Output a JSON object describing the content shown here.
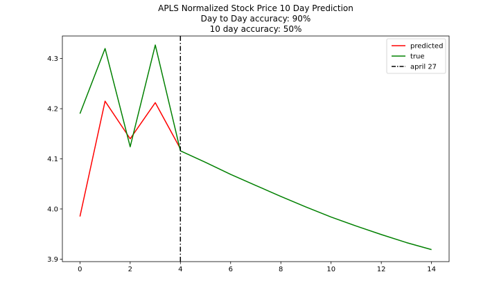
{
  "chart_data": {
    "type": "line",
    "title_lines": [
      "APLS Normalized Stock Price 10 Day Prediction",
      "Day to Day accuracy: 90%",
      "10 day accuracy: 50%"
    ],
    "xlabel": "",
    "ylabel": "",
    "xlim": [
      -0.7,
      14.7
    ],
    "ylim": [
      3.895,
      4.345
    ],
    "x_ticks": [
      0,
      2,
      4,
      6,
      8,
      10,
      12,
      14
    ],
    "x_tick_labels": [
      "0",
      "2",
      "4",
      "6",
      "8",
      "10",
      "12",
      "14"
    ],
    "y_ticks": [
      3.9,
      4.0,
      4.1,
      4.2,
      4.3
    ],
    "y_tick_labels": [
      "3.9",
      "4.0",
      "4.1",
      "4.2",
      "4.3"
    ],
    "grid": false,
    "legend_position": "top-right",
    "series": [
      {
        "name": "predicted",
        "color": "#ff0000",
        "x": [
          0,
          1,
          2,
          3,
          4
        ],
        "y": [
          3.985,
          4.215,
          4.14,
          4.212,
          4.12
        ]
      },
      {
        "name": "true",
        "color": "#008000",
        "x": [
          0,
          1,
          2,
          3,
          4,
          5,
          6,
          7,
          8,
          9,
          10,
          11,
          12,
          13,
          14
        ],
        "y": [
          4.19,
          4.32,
          4.124,
          4.327,
          4.116,
          4.093,
          4.069,
          4.047,
          4.025,
          4.004,
          3.984,
          3.966,
          3.949,
          3.933,
          3.919
        ]
      }
    ],
    "vline": {
      "name": "april 27",
      "x": 4,
      "color": "#000000",
      "style": "dashdot"
    }
  }
}
